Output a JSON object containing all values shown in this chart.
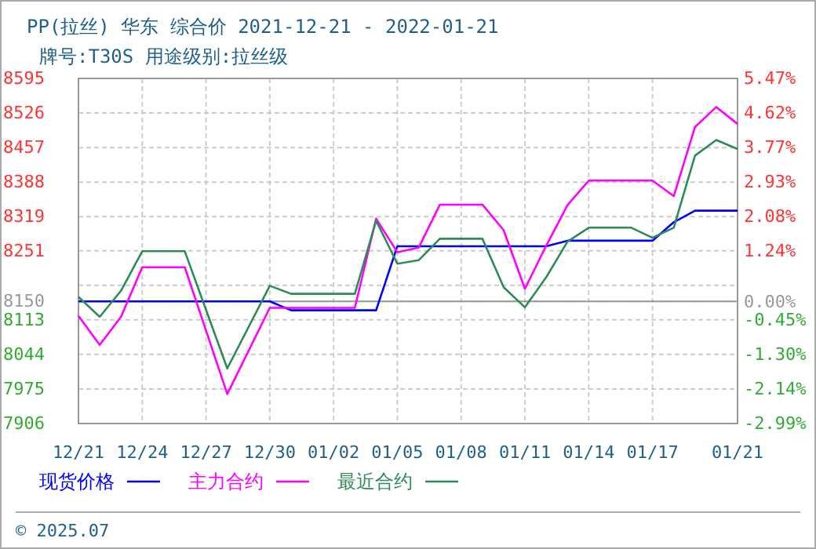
{
  "chart_data": {
    "type": "line",
    "title": "PP(拉丝) 华东 综合价 2021-12-21 - 2022-01-21",
    "subtitle": "牌号:T30S 用途级别:拉丝级",
    "xlim": [
      "2021-12-21",
      "2022-01-21"
    ],
    "xticks": [
      {
        "value": "2021-12-21",
        "label": "12/21"
      },
      {
        "value": "2021-12-24",
        "label": "12/24"
      },
      {
        "value": "2021-12-27",
        "label": "12/27"
      },
      {
        "value": "2021-12-30",
        "label": "12/30"
      },
      {
        "value": "2022-01-02",
        "label": "01/02"
      },
      {
        "value": "2022-01-05",
        "label": "01/05"
      },
      {
        "value": "2022-01-08",
        "label": "01/08"
      },
      {
        "value": "2022-01-11",
        "label": "01/11"
      },
      {
        "value": "2022-01-14",
        "label": "01/14"
      },
      {
        "value": "2022-01-17",
        "label": "01/17"
      },
      {
        "value": "2022-01-21",
        "label": "01/21"
      }
    ],
    "ylim": [
      7906,
      8595
    ],
    "yticks": [
      7906,
      7975,
      8044,
      8113,
      8150,
      {
        "value": 8182,
        "label": null
      },
      8251,
      8319,
      8388,
      8457,
      8526,
      8595
    ],
    "y2lim": [
      -2.99,
      5.47
    ],
    "y2ticks": [
      {
        "value": -2.99,
        "label": "-2.99%"
      },
      {
        "value": -2.14,
        "label": "-2.14%"
      },
      {
        "value": -1.3,
        "label": "-1.30%"
      },
      {
        "value": -0.45,
        "label": "-0.45%"
      },
      {
        "value": 0,
        "label": "0.00%"
      },
      {
        "value": 1.24,
        "label": "1.24%"
      },
      {
        "value": 2.08,
        "label": "2.08%"
      },
      {
        "value": 2.93,
        "label": "2.93%"
      },
      {
        "value": 3.77,
        "label": "3.77%"
      },
      {
        "value": 4.62,
        "label": "4.62%"
      },
      {
        "value": 5.47,
        "label": "5.47%"
      }
    ],
    "ref_lines": [
      {
        "axis": "y",
        "value": 8150,
        "color": "#999999"
      }
    ],
    "grid": true,
    "legend": "bottom",
    "line_style": "solid",
    "marker": "none",
    "annotations": [
      "© 2025.07"
    ],
    "series": [
      {
        "name": "现货价格",
        "color": "#0000ff",
        "x": [
          "2021-12-21",
          "2021-12-30",
          "2021-12-31",
          "2022-01-04",
          "2022-01-05",
          "2022-01-12",
          "2022-01-13",
          "2022-01-17",
          "2022-01-18",
          "2022-01-19",
          "2022-01-21"
        ],
        "values": [
          8150,
          8150,
          8132,
          8132,
          8260,
          8260,
          8271,
          8271,
          8308,
          8331,
          8331
        ]
      },
      {
        "name": "主力合约",
        "color": "#ff00ff",
        "x": [
          "2021-12-21",
          "2021-12-22",
          "2021-12-23",
          "2021-12-24",
          "2021-12-26",
          "2021-12-28",
          "2021-12-30",
          "2022-01-03",
          "2022-01-04",
          "2022-01-05",
          "2022-01-06",
          "2022-01-07",
          "2022-01-09",
          "2022-01-10",
          "2022-01-11",
          "2022-01-12",
          "2022-01-13",
          "2022-01-14",
          "2022-01-17",
          "2022-01-18",
          "2022-01-19",
          "2022-01-20",
          "2022-01-21"
        ],
        "values": [
          8121,
          8063,
          8119,
          8218,
          8218,
          7965,
          8137,
          8137,
          8315,
          8248,
          8257,
          8343,
          8343,
          8292,
          8175,
          8261,
          8342,
          8391,
          8391,
          8360,
          8498,
          8538,
          8504
        ]
      },
      {
        "name": "最近合约",
        "color": "#2e8b57",
        "x": [
          "2021-12-21",
          "2021-12-22",
          "2021-12-23",
          "2021-12-24",
          "2021-12-26",
          "2021-12-28",
          "2021-12-30",
          "2021-12-31",
          "2022-01-03",
          "2022-01-04",
          "2022-01-05",
          "2022-01-06",
          "2022-01-07",
          "2022-01-09",
          "2022-01-10",
          "2022-01-11",
          "2022-01-12",
          "2022-01-13",
          "2022-01-14",
          "2022-01-16",
          "2022-01-17",
          "2022-01-18",
          "2022-01-19",
          "2022-01-20",
          "2022-01-21"
        ],
        "values": [
          8159,
          8119,
          8171,
          8250,
          8250,
          8016,
          8181,
          8165,
          8165,
          8311,
          8225,
          8232,
          8275,
          8275,
          8178,
          8138,
          8198,
          8269,
          8297,
          8297,
          8277,
          8297,
          8441,
          8472,
          8454
        ]
      }
    ]
  }
}
